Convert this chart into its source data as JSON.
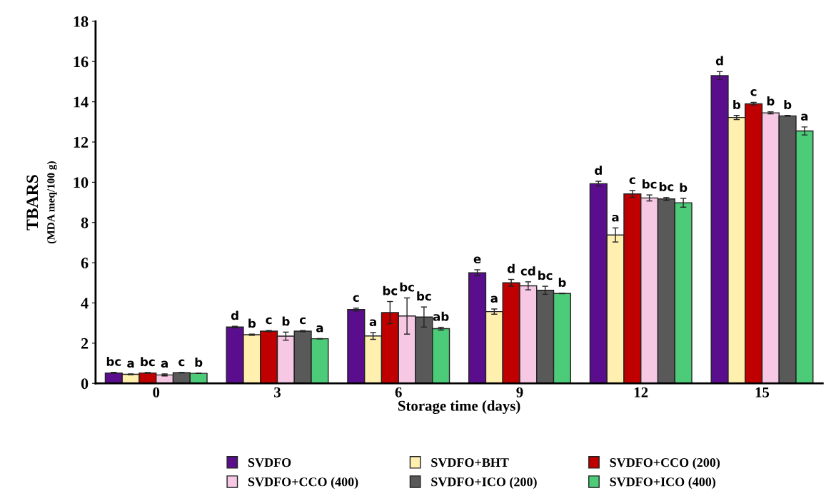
{
  "chart_data": {
    "type": "bar",
    "xlabel": "Storage time (days)",
    "ylabel": "TBARS\n(MDA meq/100 g)",
    "categories": [
      "0",
      "3",
      "6",
      "9",
      "12",
      "15"
    ],
    "ylim": [
      0,
      18
    ],
    "yticks": [
      0,
      2,
      4,
      6,
      8,
      10,
      12,
      14,
      16,
      18
    ],
    "grid": false,
    "legend": "bottom",
    "series": [
      {
        "name": "SVDFO",
        "color": "#5a0d8c",
        "values": [
          0.52,
          2.8,
          3.67,
          5.5,
          9.93,
          15.3
        ],
        "errors": [
          0.03,
          0.04,
          0.07,
          0.15,
          0.12,
          0.2
        ],
        "value_labels": [
          "bc",
          "d",
          "c",
          "e",
          "d",
          "d"
        ]
      },
      {
        "name": "SVDFO+BHT",
        "color": "#fff0b0",
        "values": [
          0.45,
          2.42,
          2.36,
          3.57,
          7.38,
          13.22
        ],
        "errors": [
          0.02,
          0.03,
          0.17,
          0.13,
          0.35,
          0.1
        ],
        "value_labels": [
          "a",
          "b",
          "a",
          "a",
          "a",
          "b"
        ]
      },
      {
        "name": "SVDFO+CCO (200)",
        "color": "#c00000",
        "values": [
          0.52,
          2.6,
          3.52,
          5.0,
          9.42,
          13.9
        ],
        "errors": [
          0.02,
          0.03,
          0.55,
          0.17,
          0.17,
          0.07
        ],
        "value_labels": [
          "bc",
          "c",
          "bc",
          "d",
          "c",
          "c"
        ]
      },
      {
        "name": "SVDFO+CCO (400)",
        "color": "#f6c8e4",
        "values": [
          0.42,
          2.35,
          3.35,
          4.85,
          9.22,
          13.45
        ],
        "errors": [
          0.05,
          0.2,
          0.9,
          0.2,
          0.15,
          0.05
        ],
        "value_labels": [
          "a",
          "b",
          "bc",
          "cd",
          "bc",
          "b"
        ]
      },
      {
        "name": "SVDFO+ICO (200)",
        "color": "#595959",
        "values": [
          0.53,
          2.6,
          3.3,
          4.63,
          9.17,
          13.3
        ],
        "errors": [
          0.01,
          0.03,
          0.5,
          0.2,
          0.07,
          0.02
        ],
        "value_labels": [
          "c",
          "c",
          "bc",
          "bc",
          "bc",
          "b"
        ]
      },
      {
        "name": "SVDFO+ICO (400)",
        "color": "#4ccc78",
        "values": [
          0.5,
          2.22,
          2.72,
          4.47,
          8.98,
          12.55
        ],
        "errors": [
          0.01,
          0.01,
          0.07,
          0.01,
          0.22,
          0.2
        ],
        "value_labels": [
          "b",
          "a",
          "ab",
          "b",
          "b",
          "a"
        ]
      }
    ]
  }
}
